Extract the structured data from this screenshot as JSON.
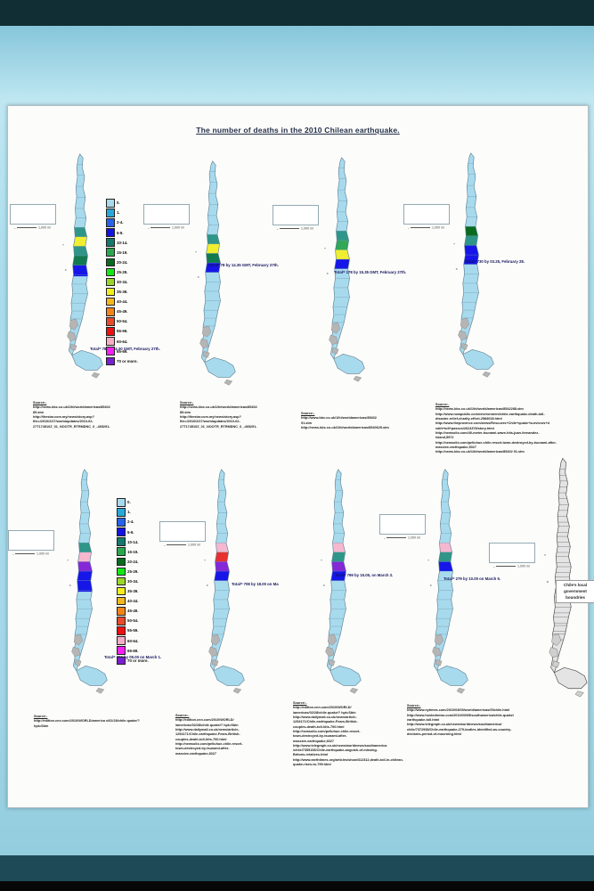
{
  "title": "The number of deaths in the 2010 Chilean earthquake.",
  "scale_label": "1,000 mi",
  "legend": {
    "items": [
      {
        "label": "0.",
        "color": "#a8daee"
      },
      {
        "label": "1.",
        "color": "#28a8d8"
      },
      {
        "label": "2-4.",
        "color": "#2862e8"
      },
      {
        "label": "5-9.",
        "color": "#1414e0"
      },
      {
        "label": "10-14.",
        "color": "#15796b"
      },
      {
        "label": "15-19.",
        "color": "#2ba84f"
      },
      {
        "label": "20-24.",
        "color": "#0a6b1e"
      },
      {
        "label": "25-29.",
        "color": "#16e816"
      },
      {
        "label": "30-34.",
        "color": "#9ad62a"
      },
      {
        "label": "35-39.",
        "color": "#f2ee20"
      },
      {
        "label": "40-44.",
        "color": "#f2b81e"
      },
      {
        "label": "45-49.",
        "color": "#f28418"
      },
      {
        "label": "50-54.",
        "color": "#e84a2a"
      },
      {
        "label": "55-59.",
        "color": "#ee1111"
      },
      {
        "label": "60-64.",
        "color": "#f5aec5"
      },
      {
        "label": "65-69.",
        "color": "#f220f2"
      },
      {
        "label": "70 or more.",
        "color": "#7a1fd0"
      }
    ]
  },
  "maps": [
    {
      "total": "Total= 78 by 14.30 GMT, February 27th.",
      "has_legend": true,
      "regions": [
        {
          "range": "10-14.",
          "color": "#2e9688"
        },
        {
          "range": "35-39.",
          "color": "#f0ee30"
        },
        {
          "range": "10-14.",
          "color": "#2e9688"
        },
        {
          "range": "20-24.",
          "color": "#117a50"
        },
        {
          "range": "5-9.",
          "color": "#1616e8"
        }
      ],
      "source_heading": "Source:-",
      "source_lines": [
        "http://news.bbc.co.uk/1/hi/world/americas/85402",
        "89.stm",
        "http://thestar.com.my/news/story.asp?",
        "file=/2010/2/27/worldupdates/2010-02-",
        "27T174510Z_01_NOOTR_RTRMDNC_0_-465291-"
      ]
    },
    {
      "total": "Total= 78 by 14.35 GMT, February 27th.",
      "has_legend": false,
      "regions": [
        {
          "range": "10-14.",
          "color": "#2e9688"
        },
        {
          "range": "35-39.",
          "color": "#f0ee30"
        },
        {
          "range": "20-24.",
          "color": "#117a50"
        },
        {
          "range": "5-9.",
          "color": "#1616e8"
        },
        {
          "range": "0.",
          "color": "#a8daee"
        }
      ],
      "source_heading": "Source:-",
      "source_lines": [
        "http://news.bbc.co.uk/1/hi/world/americas/85402",
        "89.stm",
        "http://thestar.com.my/news/story.asp?",
        "file=/2010/2/27/worldupdates/2010-02-",
        "27T174510Z_01_NOOTR_RTRMDNC_0_-465291-"
      ]
    },
    {
      "total": "Total=  178 by 15.35 GMT, February 27th.",
      "has_legend": false,
      "regions": [
        {
          "range": "10-14.",
          "color": "#2e9688"
        },
        {
          "range": "15-19.",
          "color": "#31a858"
        },
        {
          "range": "35-39.",
          "color": "#f0ee30"
        },
        {
          "range": "5-9.",
          "color": "#1616e8"
        },
        {
          "range": "0.",
          "color": "#a8daee"
        }
      ],
      "source_heading": "Source:-",
      "source_lines": [
        "http://www.bbc.co.uk/1/hi/worldamericas/85402",
        "91.stm",
        "http://news.bbc.co.uk/1/hi/world/americas/8540625.stm"
      ]
    },
    {
      "total": "Total= 730 by 03.25, February 28.",
      "has_legend": false,
      "regions": [
        {
          "range": "20-24.",
          "color": "#0a6b1e"
        },
        {
          "range": "10-14.",
          "color": "#2e9688"
        },
        {
          "range": "5-9.",
          "color": "#1616e8"
        },
        {
          "range": "5-9.",
          "color": "#1616e8"
        },
        {
          "range": "0.",
          "color": "#a8daee"
        }
      ],
      "source_heading": "Source:-",
      "source_lines": [
        "http://news.bbc.co.uk/1/hi/world/americas/8542288.stm",
        "http://www.nowpublic.com/environment/chile-earthquake-death-toll-",
        "disaster-relief-charity-effort-2584028.html",
        "http://www.theprovince.com/news/Rescuers+Chile+quake+survivors+d",
        "eath+toll+passes/2624378/story.html",
        "http://newsolio.com/40-meter-tsunami-wave-hits-juan-fernandez-",
        "island,5972",
        "http://newsolio.com/pelluhue-chile-resort-town-destroyed-by-tsunami-after-",
        "massive-earthquake,6027",
        "http://news.bbc.co.uk/1/hi/world/americas/85402 91.stm"
      ]
    },
    {
      "total": "Total= 700 by 05.00 on March 1.",
      "has_legend": true,
      "regions": [
        {
          "range": "10-14.",
          "color": "#2e9688"
        },
        {
          "range": "60-64.",
          "color": "#f5b8cf"
        },
        {
          "range": "70 or more.",
          "color": "#8428d8"
        },
        {
          "range": "5-9.",
          "color": "#1616e8"
        },
        {
          "range": "5-9.",
          "color": "#1616e8"
        }
      ],
      "source_heading": "Source:-",
      "source_lines": [
        "http://edition.cnn.com/2010/WORLD/america s/02/28/chile.quake/?",
        "hpt=Sbin"
      ]
    },
    {
      "total": "Total= 708 by 18.00 on  Ma",
      "has_legend": false,
      "regions": [
        {
          "range": "60-64.",
          "color": "#f5b8cf"
        },
        {
          "range": "55-59.",
          "color": "#e83030"
        },
        {
          "range": "70 or more.",
          "color": "#8428d8"
        },
        {
          "range": "5-9.",
          "color": "#1616e8"
        },
        {
          "range": "0.",
          "color": "#a8daee"
        }
      ],
      "source_heading": "Source:-",
      "source_lines": [
        "http://edition.cnn.com/2010/WORLD/",
        "/americas/02/28/chile.quake/? hpt=Sbin",
        "http://www.dailymail.co.uk/news/article-",
        "1254171/Chile-earthquake-Fears-British-",
        "couples-death-toll-hits-700.html",
        "http://newsolio.com/pelluhue-chile-resort-",
        "town-destroyed-by-tsunami-after-",
        "massive-earthquake,6027"
      ]
    },
    {
      "total": "Total= 799 by 15.05, on March 3.",
      "has_legend": false,
      "regions": [
        {
          "range": "60-64.",
          "color": "#f5b8cf"
        },
        {
          "range": "10-14.",
          "color": "#2e9688"
        },
        {
          "range": "70 or more.",
          "color": "#8428d8"
        },
        {
          "range": "5-9.",
          "color": "#1616e8"
        },
        {
          "range": "0.",
          "color": "#a8daee"
        }
      ],
      "source_heading": "Source:-",
      "source_lines": [
        "http://edition.cnn.com/2010/WORLD/",
        "/americas/02/28/chile.quake/? hpt=Sbin",
        "http://www.dailymail.co.uk/news/article-",
        "1254171/Chile-earthquake-Fears-British-",
        "couples-death-toll-hits-700.html",
        "http://newsolio.com/pelluhue-chile-resort-",
        "town-destroyed-by-tsunami-after-",
        "massive-earthquake,6027",
        "http://www.telegraph.co.uk/news/worldnews/southamerica",
        "/chile/7355153/Chile-earthquake-anguish-of-missing-",
        "Britons-relatives.html",
        "http://www.earthtimes.org/articles/show/312312,death-toll-in-chilean-",
        "quake-rises-to-799.html"
      ]
    },
    {
      "total": "Total= 279 by 10.00 on March 5.",
      "has_legend": false,
      "regions": [
        {
          "range": "60-64.",
          "color": "#f5b8cf"
        },
        {
          "range": "10-14.",
          "color": "#2e9688"
        },
        {
          "range": "5-9.",
          "color": "#1616e8"
        },
        {
          "range": "0.",
          "color": "#a8daee"
        },
        {
          "range": "0.",
          "color": "#a8daee"
        }
      ],
      "source_heading": "Source:-",
      "source_lines": [
        "http://www.nytimes.com/2010/03/05/world/americas/05chile.html",
        "http://www.hostednews.com/2010/03/05/southamerica/chile-quake/",
        "earthquake-toll.html",
        "http://www.telegraph.co.uk/news/worldnews/southamerica/",
        "chile/7372938/Chile-earthquake-279-bodies-identified-as-country-",
        "declares-period-of-mourning.html"
      ]
    }
  ],
  "boundaries_map": {
    "label": "Chile's local government boundries"
  }
}
